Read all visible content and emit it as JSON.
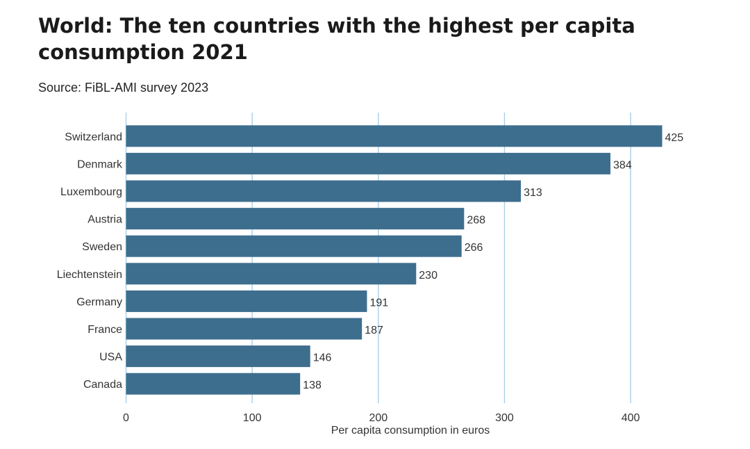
{
  "chart_data": {
    "type": "bar",
    "orientation": "horizontal",
    "title": "World: The ten countries with the highest per capita consumption 2021",
    "subtitle": "Source: FiBL-AMI survey 2023",
    "xlabel": "Per capita consumption in euros",
    "ylabel": "",
    "xlim": [
      0,
      440
    ],
    "xticks": [
      0,
      100,
      200,
      300,
      400
    ],
    "grid": true,
    "bar_color": "#3e6e8e",
    "grid_color": "#a9cfe6",
    "categories": [
      "Switzerland",
      "Denmark",
      "Luxembourg",
      "Austria",
      "Sweden",
      "Liechtenstein",
      "Germany",
      "France",
      "USA",
      "Canada"
    ],
    "values": [
      425,
      384,
      313,
      268,
      266,
      230,
      191,
      187,
      146,
      138
    ]
  }
}
